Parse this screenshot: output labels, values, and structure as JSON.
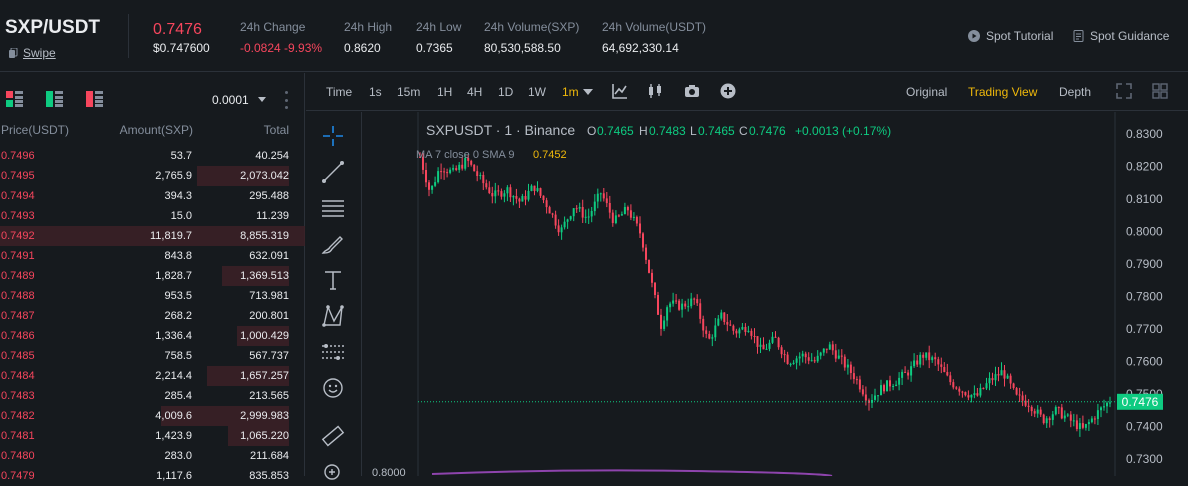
{
  "header": {
    "pair": "SXP/USDT",
    "swipe": "Swipe",
    "last_price": "0.7476",
    "last_price_usd": "$0.747600",
    "stats": [
      {
        "label": "24h Change",
        "value": "-0.0824 -9.93%",
        "red": true
      },
      {
        "label": "24h High",
        "value": "0.8620"
      },
      {
        "label": "24h Low",
        "value": "0.7365"
      },
      {
        "label": "24h Volume(SXP)",
        "value": "80,530,588.50"
      },
      {
        "label": "24h Volume(USDT)",
        "value": "64,692,330.14"
      }
    ],
    "links": [
      "Spot Tutorial",
      "Spot Guidance"
    ]
  },
  "orderbook": {
    "precision": "0.0001",
    "columns": [
      "Price(USDT)",
      "Amount(SXP)",
      "Total"
    ],
    "rows": [
      {
        "price": "0.7496",
        "amount": "53.7",
        "total": "40.254",
        "depth": 0
      },
      {
        "price": "0.7495",
        "amount": "2,765.9",
        "total": "2,073.042",
        "depth": 0.3
      },
      {
        "price": "0.7494",
        "amount": "394.3",
        "total": "295.488",
        "depth": 0
      },
      {
        "price": "0.7493",
        "amount": "15.0",
        "total": "11.239",
        "depth": 0
      },
      {
        "price": "0.7492",
        "amount": "11,819.7",
        "total": "8,855.319",
        "depth": 1.0
      },
      {
        "price": "0.7491",
        "amount": "843.8",
        "total": "632.091",
        "depth": 0
      },
      {
        "price": "0.7489",
        "amount": "1,828.7",
        "total": "1,369.513",
        "depth": 0.22
      },
      {
        "price": "0.7488",
        "amount": "953.5",
        "total": "713.981",
        "depth": 0
      },
      {
        "price": "0.7487",
        "amount": "268.2",
        "total": "200.801",
        "depth": 0
      },
      {
        "price": "0.7486",
        "amount": "1,336.4",
        "total": "1,000.429",
        "depth": 0.17
      },
      {
        "price": "0.7485",
        "amount": "758.5",
        "total": "567.737",
        "depth": 0
      },
      {
        "price": "0.7484",
        "amount": "2,214.4",
        "total": "1,657.257",
        "depth": 0.27
      },
      {
        "price": "0.7483",
        "amount": "285.4",
        "total": "213.565",
        "depth": 0
      },
      {
        "price": "0.7482",
        "amount": "4,009.6",
        "total": "2,999.983",
        "depth": 0.42
      },
      {
        "price": "0.7481",
        "amount": "1,423.9",
        "total": "1,065.220",
        "depth": 0.2
      },
      {
        "price": "0.7480",
        "amount": "283.0",
        "total": "211.684",
        "depth": 0
      },
      {
        "price": "0.7479",
        "amount": "1,117.6",
        "total": "835.853",
        "depth": 0
      }
    ]
  },
  "chart_toolbar": {
    "intervals": [
      "Time",
      "1s",
      "15m",
      "1H",
      "4H",
      "1D",
      "1W",
      "1m"
    ],
    "active_interval": "1m",
    "views": [
      "Original",
      "Trading View",
      "Depth"
    ],
    "active_view": "Trading View"
  },
  "chart_data": {
    "type": "candlestick",
    "symbol": "SXPUSDT · 1 · Binance",
    "ohlc": {
      "O": "0.7465",
      "H": "0.7483",
      "L": "0.7465",
      "C": "0.7476",
      "chg": "+0.0013 (+0.17%)"
    },
    "ma_label": "MA 7 close 0 SMA 9",
    "ma_value": "0.7452",
    "current_price": "0.7476",
    "y_ticks": [
      "0.8300",
      "0.8200",
      "0.8100",
      "0.8000",
      "0.7900",
      "0.7800",
      "0.7700",
      "0.7600",
      "0.7500",
      "0.7400",
      "0.7300"
    ],
    "ylim": [
      0.73,
      0.83
    ],
    "sub_tick": "0.8000",
    "trend": [
      [
        0,
        0.823
      ],
      [
        3,
        0.812
      ],
      [
        6,
        0.82
      ],
      [
        10,
        0.818
      ],
      [
        14,
        0.822
      ],
      [
        18,
        0.816
      ],
      [
        22,
        0.811
      ],
      [
        26,
        0.813
      ],
      [
        30,
        0.809
      ],
      [
        34,
        0.814
      ],
      [
        38,
        0.808
      ],
      [
        42,
        0.8
      ],
      [
        46,
        0.808
      ],
      [
        50,
        0.804
      ],
      [
        54,
        0.812
      ],
      [
        58,
        0.803
      ],
      [
        62,
        0.807
      ],
      [
        66,
        0.799
      ],
      [
        70,
        0.78
      ],
      [
        72,
        0.771
      ],
      [
        74,
        0.778
      ],
      [
        78,
        0.777
      ],
      [
        82,
        0.779
      ],
      [
        86,
        0.766
      ],
      [
        90,
        0.774
      ],
      [
        94,
        0.769
      ],
      [
        98,
        0.771
      ],
      [
        102,
        0.763
      ],
      [
        106,
        0.767
      ],
      [
        110,
        0.76
      ],
      [
        114,
        0.762
      ],
      [
        118,
        0.76
      ],
      [
        122,
        0.765
      ],
      [
        126,
        0.76
      ],
      [
        130,
        0.755
      ],
      [
        134,
        0.748
      ],
      [
        138,
        0.752
      ],
      [
        142,
        0.754
      ],
      [
        146,
        0.757
      ],
      [
        150,
        0.762
      ],
      [
        154,
        0.76
      ],
      [
        158,
        0.754
      ],
      [
        162,
        0.751
      ],
      [
        166,
        0.749
      ],
      [
        170,
        0.754
      ],
      [
        174,
        0.757
      ],
      [
        178,
        0.749
      ],
      [
        182,
        0.747
      ],
      [
        186,
        0.742
      ],
      [
        190,
        0.745
      ],
      [
        194,
        0.742
      ],
      [
        198,
        0.739
      ],
      [
        202,
        0.744
      ],
      [
        206,
        0.748
      ]
    ]
  }
}
